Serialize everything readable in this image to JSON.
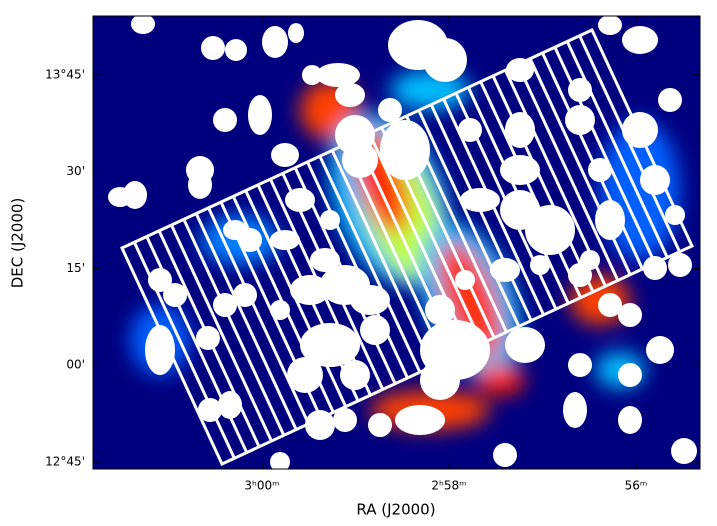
{
  "chart_data": {
    "type": "image",
    "xlabel": "RA (J2000)",
    "ylabel": "DEC (J2000)",
    "xlim": [
      45.452,
      43.829
    ],
    "ylim": [
      12.732,
      13.902
    ],
    "xticks": [
      {
        "value": 45,
        "label": "3ʰ00ᵐ"
      },
      {
        "value": 44.5,
        "label": "2ʰ58ᵐ"
      },
      {
        "value": 44,
        "label": "56ᵐ"
      }
    ],
    "yticks": [
      {
        "value": 13.75,
        "label": "13°45'"
      },
      {
        "value": 13.5,
        "label": "30'"
      },
      {
        "value": 13.25,
        "label": "15'"
      },
      {
        "value": 13.0,
        "label": "00'"
      },
      {
        "value": 12.75,
        "label": "12°45'"
      }
    ]
  }
}
